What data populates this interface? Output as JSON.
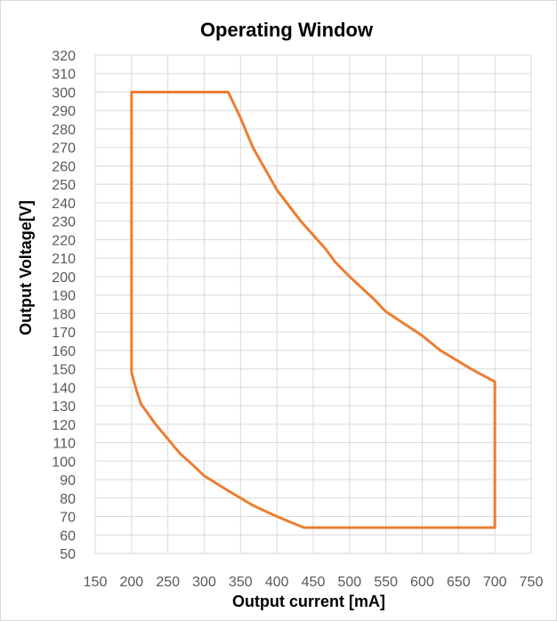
{
  "chart_data": {
    "type": "line",
    "title": "Operating Window",
    "xlabel": "Output current [mA]",
    "ylabel": "Output Voltage[V]",
    "xlim": [
      150,
      750
    ],
    "ylim": [
      50,
      320
    ],
    "xticks": [
      150,
      200,
      250,
      300,
      350,
      400,
      450,
      500,
      550,
      600,
      650,
      700,
      750
    ],
    "yticks": [
      50,
      60,
      70,
      80,
      90,
      100,
      110,
      120,
      130,
      140,
      150,
      160,
      170,
      180,
      190,
      200,
      210,
      220,
      230,
      240,
      250,
      260,
      270,
      280,
      290,
      300,
      310,
      320
    ],
    "grid": true,
    "legend": "none",
    "series": [
      {
        "color": "#ed7d31",
        "points": [
          [
            200,
            300
          ],
          [
            333,
            300
          ],
          [
            350,
            286
          ],
          [
            367,
            270
          ],
          [
            400,
            247
          ],
          [
            433,
            230
          ],
          [
            467,
            215
          ],
          [
            480,
            208
          ],
          [
            500,
            200
          ],
          [
            533,
            188
          ],
          [
            550,
            181
          ],
          [
            600,
            168
          ],
          [
            625,
            160
          ],
          [
            667,
            150
          ],
          [
            700,
            143
          ],
          [
            700,
            64
          ],
          [
            437,
            64
          ],
          [
            400,
            70
          ],
          [
            367,
            76
          ],
          [
            350,
            80
          ],
          [
            333,
            84
          ],
          [
            300,
            92
          ],
          [
            284,
            98
          ],
          [
            267,
            104
          ],
          [
            250,
            112
          ],
          [
            233,
            120
          ],
          [
            213,
            131
          ],
          [
            207,
            138
          ],
          [
            200,
            148
          ],
          [
            200,
            300
          ]
        ]
      }
    ]
  }
}
